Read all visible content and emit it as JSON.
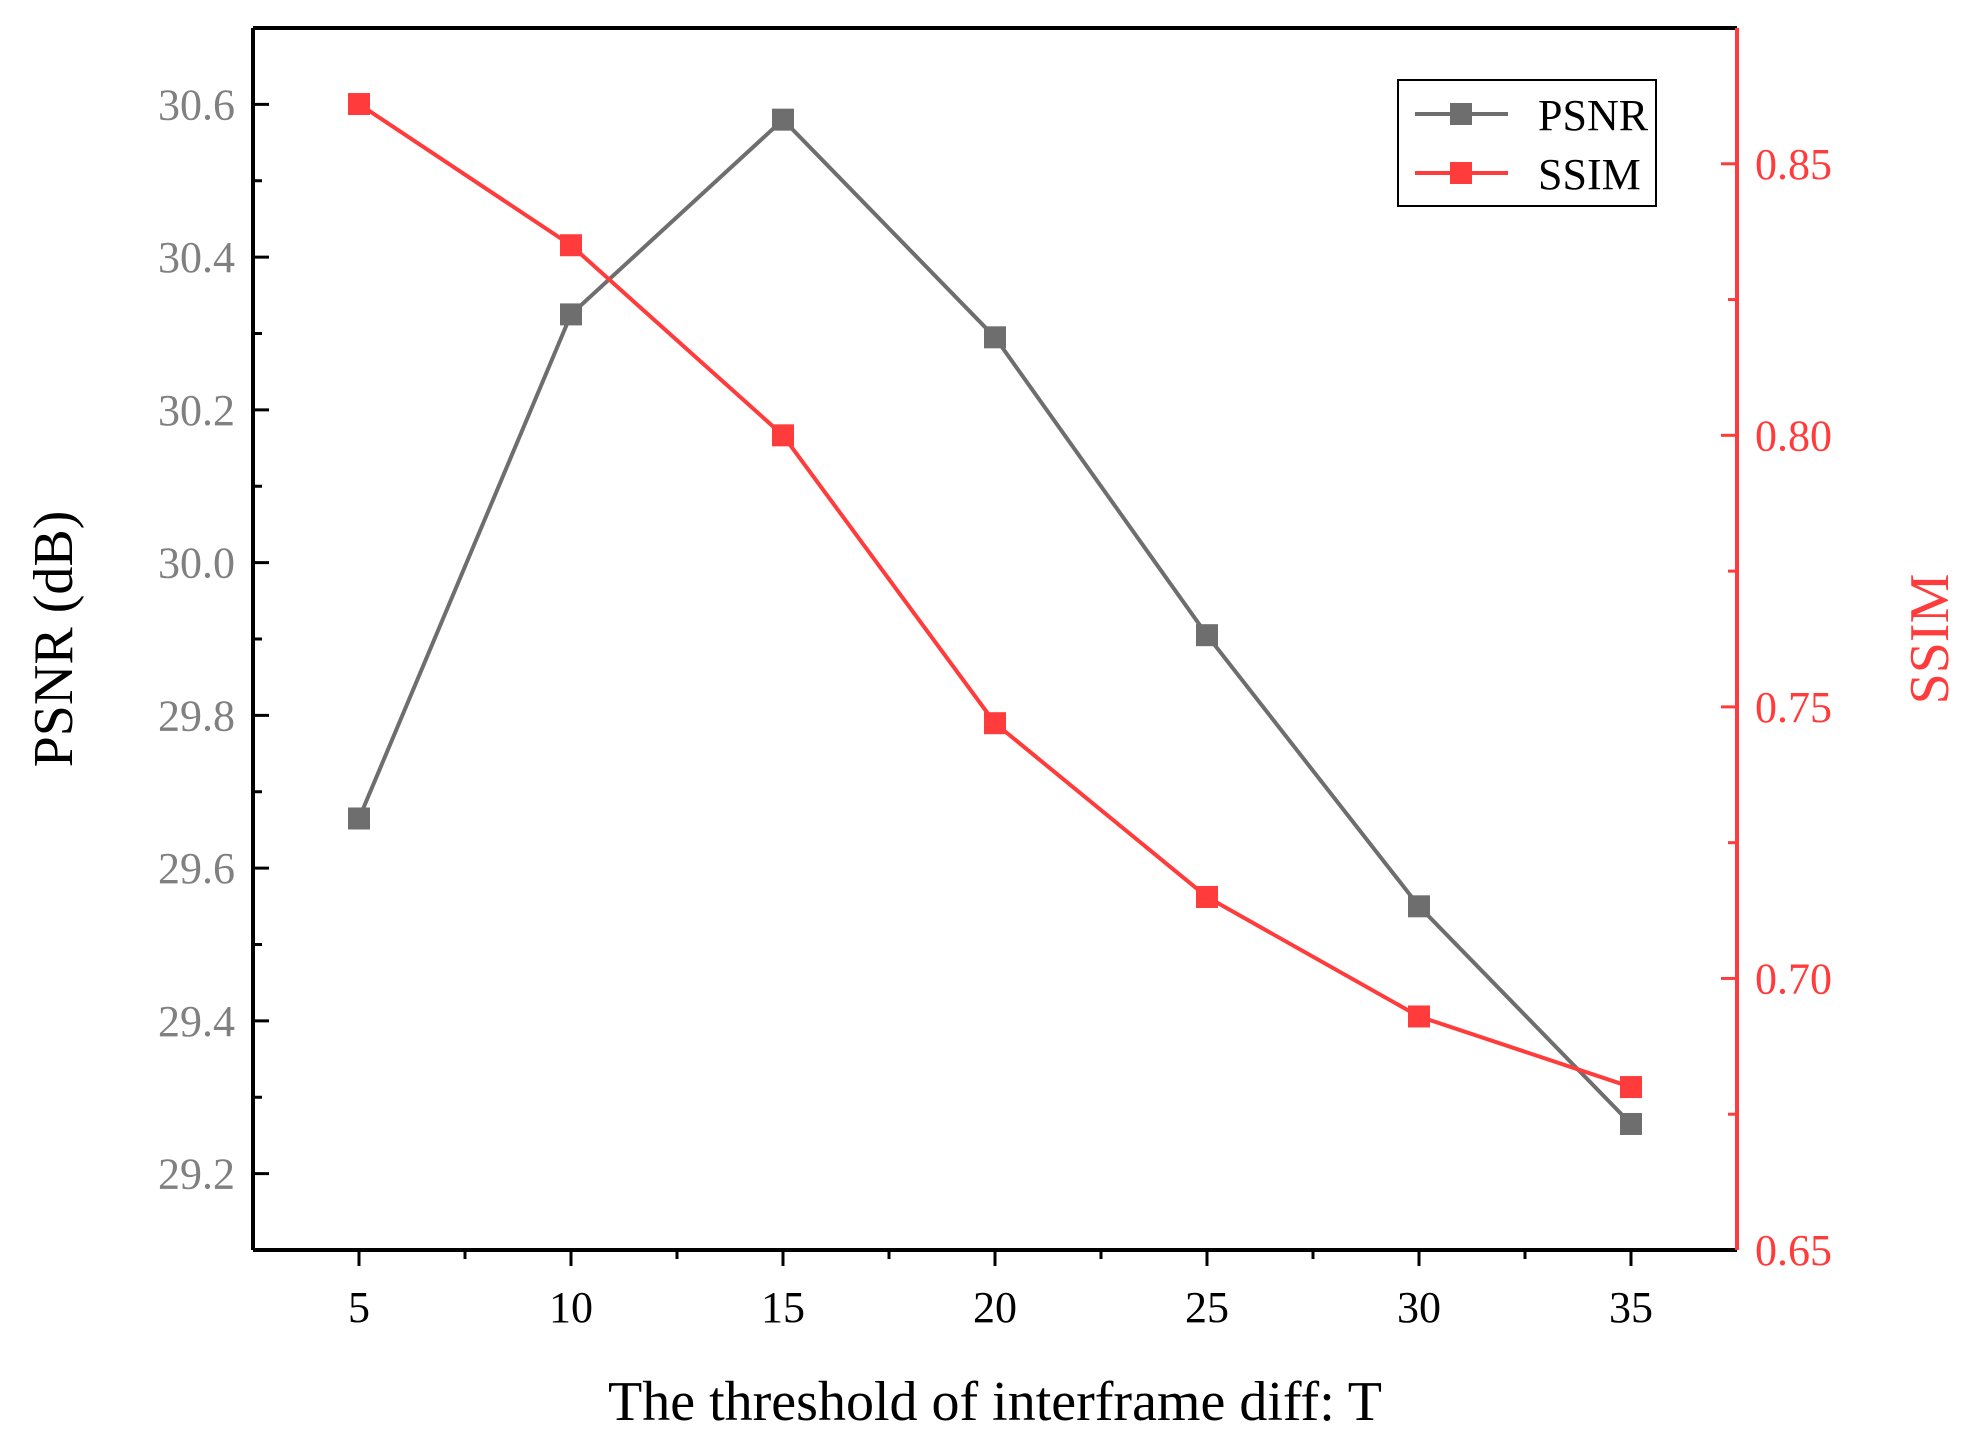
{
  "chart_data": {
    "type": "line",
    "title": "",
    "xlabel": "The threshold of interframe diff: T",
    "ylabel": "PSNR (dB)",
    "y2label": "SSIM",
    "x": [
      5,
      10,
      15,
      20,
      25,
      30,
      35
    ],
    "x_ticks": [
      "5",
      "10",
      "15",
      "20",
      "25",
      "30",
      "35"
    ],
    "xlim": [
      2.5,
      37.5
    ],
    "ylim": [
      29.1,
      30.7
    ],
    "y_ticks": [
      "29.2",
      "29.4",
      "29.6",
      "29.8",
      "30.0",
      "30.2",
      "30.4",
      "30.6"
    ],
    "y2lim": [
      0.65,
      0.875
    ],
    "y2_ticks": [
      "0.65",
      "0.70",
      "0.75",
      "0.80",
      "0.85"
    ],
    "legend_position": "top-right",
    "series": [
      {
        "name": "PSNR",
        "axis": "left",
        "color": "#6E6E6E",
        "values": [
          29.665,
          30.325,
          30.58,
          30.295,
          29.905,
          29.55,
          29.265
        ]
      },
      {
        "name": "SSIM",
        "axis": "right",
        "color": "#FF3B3B",
        "values": [
          0.861,
          0.835,
          0.8,
          0.747,
          0.715,
          0.693,
          0.68
        ]
      }
    ],
    "left_axis_color": "#808080",
    "right_axis_color": "#FF3B3B"
  }
}
